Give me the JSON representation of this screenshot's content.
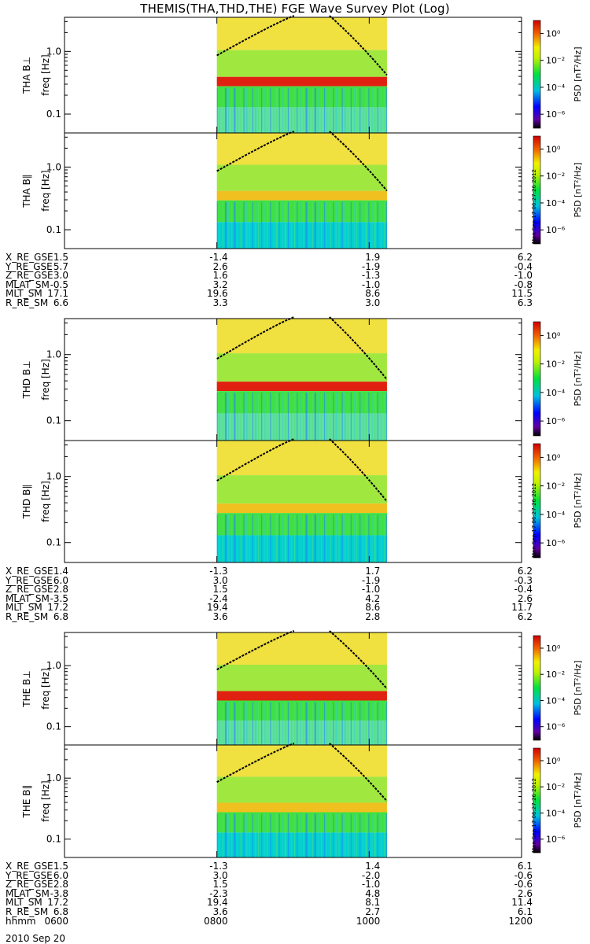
{
  "page": {
    "title": "THEMIS(THA,THD,THE) FGE Wave Survey Plot (Log)",
    "date": "2010 Sep 20"
  },
  "colors": {
    "low": "#00d0d0",
    "mid": "#40e040",
    "high": "#f0e040",
    "peak": "#e02010",
    "frame": "#000000"
  },
  "colorbar": {
    "label": "PSD [nT²/Hz]",
    "tick_labels": [
      "10⁰",
      "10⁻²",
      "10⁻⁴",
      "10⁻⁶"
    ]
  },
  "stamp": "Mon Sep 17 06:27:26 2012",
  "chart_data": [
    {
      "type": "heatmap",
      "probe": "THA",
      "title": "",
      "panels": [
        {
          "ylabel": "THA B⊥",
          "yunit": "freq [Hz]",
          "yticks": [
            "1.0",
            "0.1"
          ],
          "yscale": "log",
          "ylim": [
            0.05,
            3.5
          ],
          "data_start": "0800",
          "data_end": "1014",
          "band_hz": 0.33
        },
        {
          "ylabel": "THA B∥",
          "yunit": "freq [Hz]",
          "yticks": [
            "1.0",
            "0.1"
          ],
          "yscale": "log",
          "ylim": [
            0.05,
            3.5
          ],
          "data_start": "0800",
          "data_end": "1014",
          "band_hz": 0.35
        }
      ],
      "ephemeris": {
        "labels": [
          "X_RE_GSE",
          "Y_RE_GSE",
          "Z_RE_GSE",
          "MLAT_SM",
          "MLT_SM",
          "R_RE_SM"
        ],
        "times": [
          "0600",
          "0800",
          "1000",
          "1200"
        ],
        "values": [
          [
            "1.5",
            "-1.4",
            "1.9",
            "6.2"
          ],
          [
            "5.7",
            "2.6",
            "-1.9",
            "-0.4"
          ],
          [
            "3.0",
            "1.6",
            "-1.3",
            "-1.0"
          ],
          [
            "-0.5",
            "3.2",
            "-1.0",
            "-0.8"
          ],
          [
            "17.1",
            "19.6",
            "8.6",
            "11.5"
          ],
          [
            "6.6",
            "3.3",
            "3.0",
            "6.3"
          ]
        ]
      }
    },
    {
      "type": "heatmap",
      "probe": "THD",
      "title": "",
      "panels": [
        {
          "ylabel": "THD B⊥",
          "yunit": "freq [Hz]",
          "yticks": [
            "1.0",
            "0.1"
          ],
          "yscale": "log",
          "ylim": [
            0.05,
            3.5
          ],
          "data_start": "0800",
          "data_end": "1014",
          "band_hz": 0.33
        },
        {
          "ylabel": "THD B∥",
          "yunit": "freq [Hz]",
          "yticks": [
            "1.0",
            "0.1"
          ],
          "yscale": "log",
          "ylim": [
            0.05,
            3.5
          ],
          "data_start": "0800",
          "data_end": "1014",
          "band_hz": 0.33
        }
      ],
      "ephemeris": {
        "labels": [
          "X_RE_GSE",
          "Y_RE_GSE",
          "Z_RE_GSE",
          "MLAT_SM",
          "MLT_SM",
          "R_RE_SM"
        ],
        "times": [
          "0600",
          "0800",
          "1000",
          "1200"
        ],
        "values": [
          [
            "1.4",
            "-1.3",
            "1.7",
            "6.2"
          ],
          [
            "6.0",
            "3.0",
            "-1.9",
            "-0.3"
          ],
          [
            "2.8",
            "1.5",
            "-1.0",
            "-0.4"
          ],
          [
            "-3.5",
            "-2.4",
            "4.2",
            "2.6"
          ],
          [
            "17.2",
            "19.4",
            "8.6",
            "11.7"
          ],
          [
            "6.8",
            "3.6",
            "2.8",
            "6.2"
          ]
        ]
      }
    },
    {
      "type": "heatmap",
      "probe": "THE",
      "title": "",
      "panels": [
        {
          "ylabel": "THE B⊥",
          "yunit": "freq [Hz]",
          "yticks": [
            "1.0",
            "0.1"
          ],
          "yscale": "log",
          "ylim": [
            0.05,
            3.5
          ],
          "data_start": "0800",
          "data_end": "1014",
          "band_hz": 0.32
        },
        {
          "ylabel": "THE B∥",
          "yunit": "freq [Hz]",
          "yticks": [
            "1.0",
            "0.1"
          ],
          "yscale": "log",
          "ylim": [
            0.05,
            3.5
          ],
          "data_start": "0800",
          "data_end": "1014",
          "band_hz": 0.33
        }
      ],
      "ephemeris": {
        "labels": [
          "X_RE_GSE",
          "Y_RE_GSE",
          "Z_RE_GSE",
          "MLAT_SM",
          "MLT_SM",
          "R_RE_SM",
          "hhmm"
        ],
        "times": [
          "0600",
          "0800",
          "1000",
          "1200"
        ],
        "values": [
          [
            "1.5",
            "-1.3",
            "1.4",
            "6.1"
          ],
          [
            "6.0",
            "3.0",
            "-2.0",
            "-0.6"
          ],
          [
            "2.8",
            "1.5",
            "-1.0",
            "-0.6"
          ],
          [
            "-3.8",
            "-2.3",
            "4.8",
            "2.6"
          ],
          [
            "17.2",
            "19.4",
            "8.1",
            "11.4"
          ],
          [
            "6.8",
            "3.6",
            "2.7",
            "6.1"
          ]
        ]
      }
    }
  ]
}
